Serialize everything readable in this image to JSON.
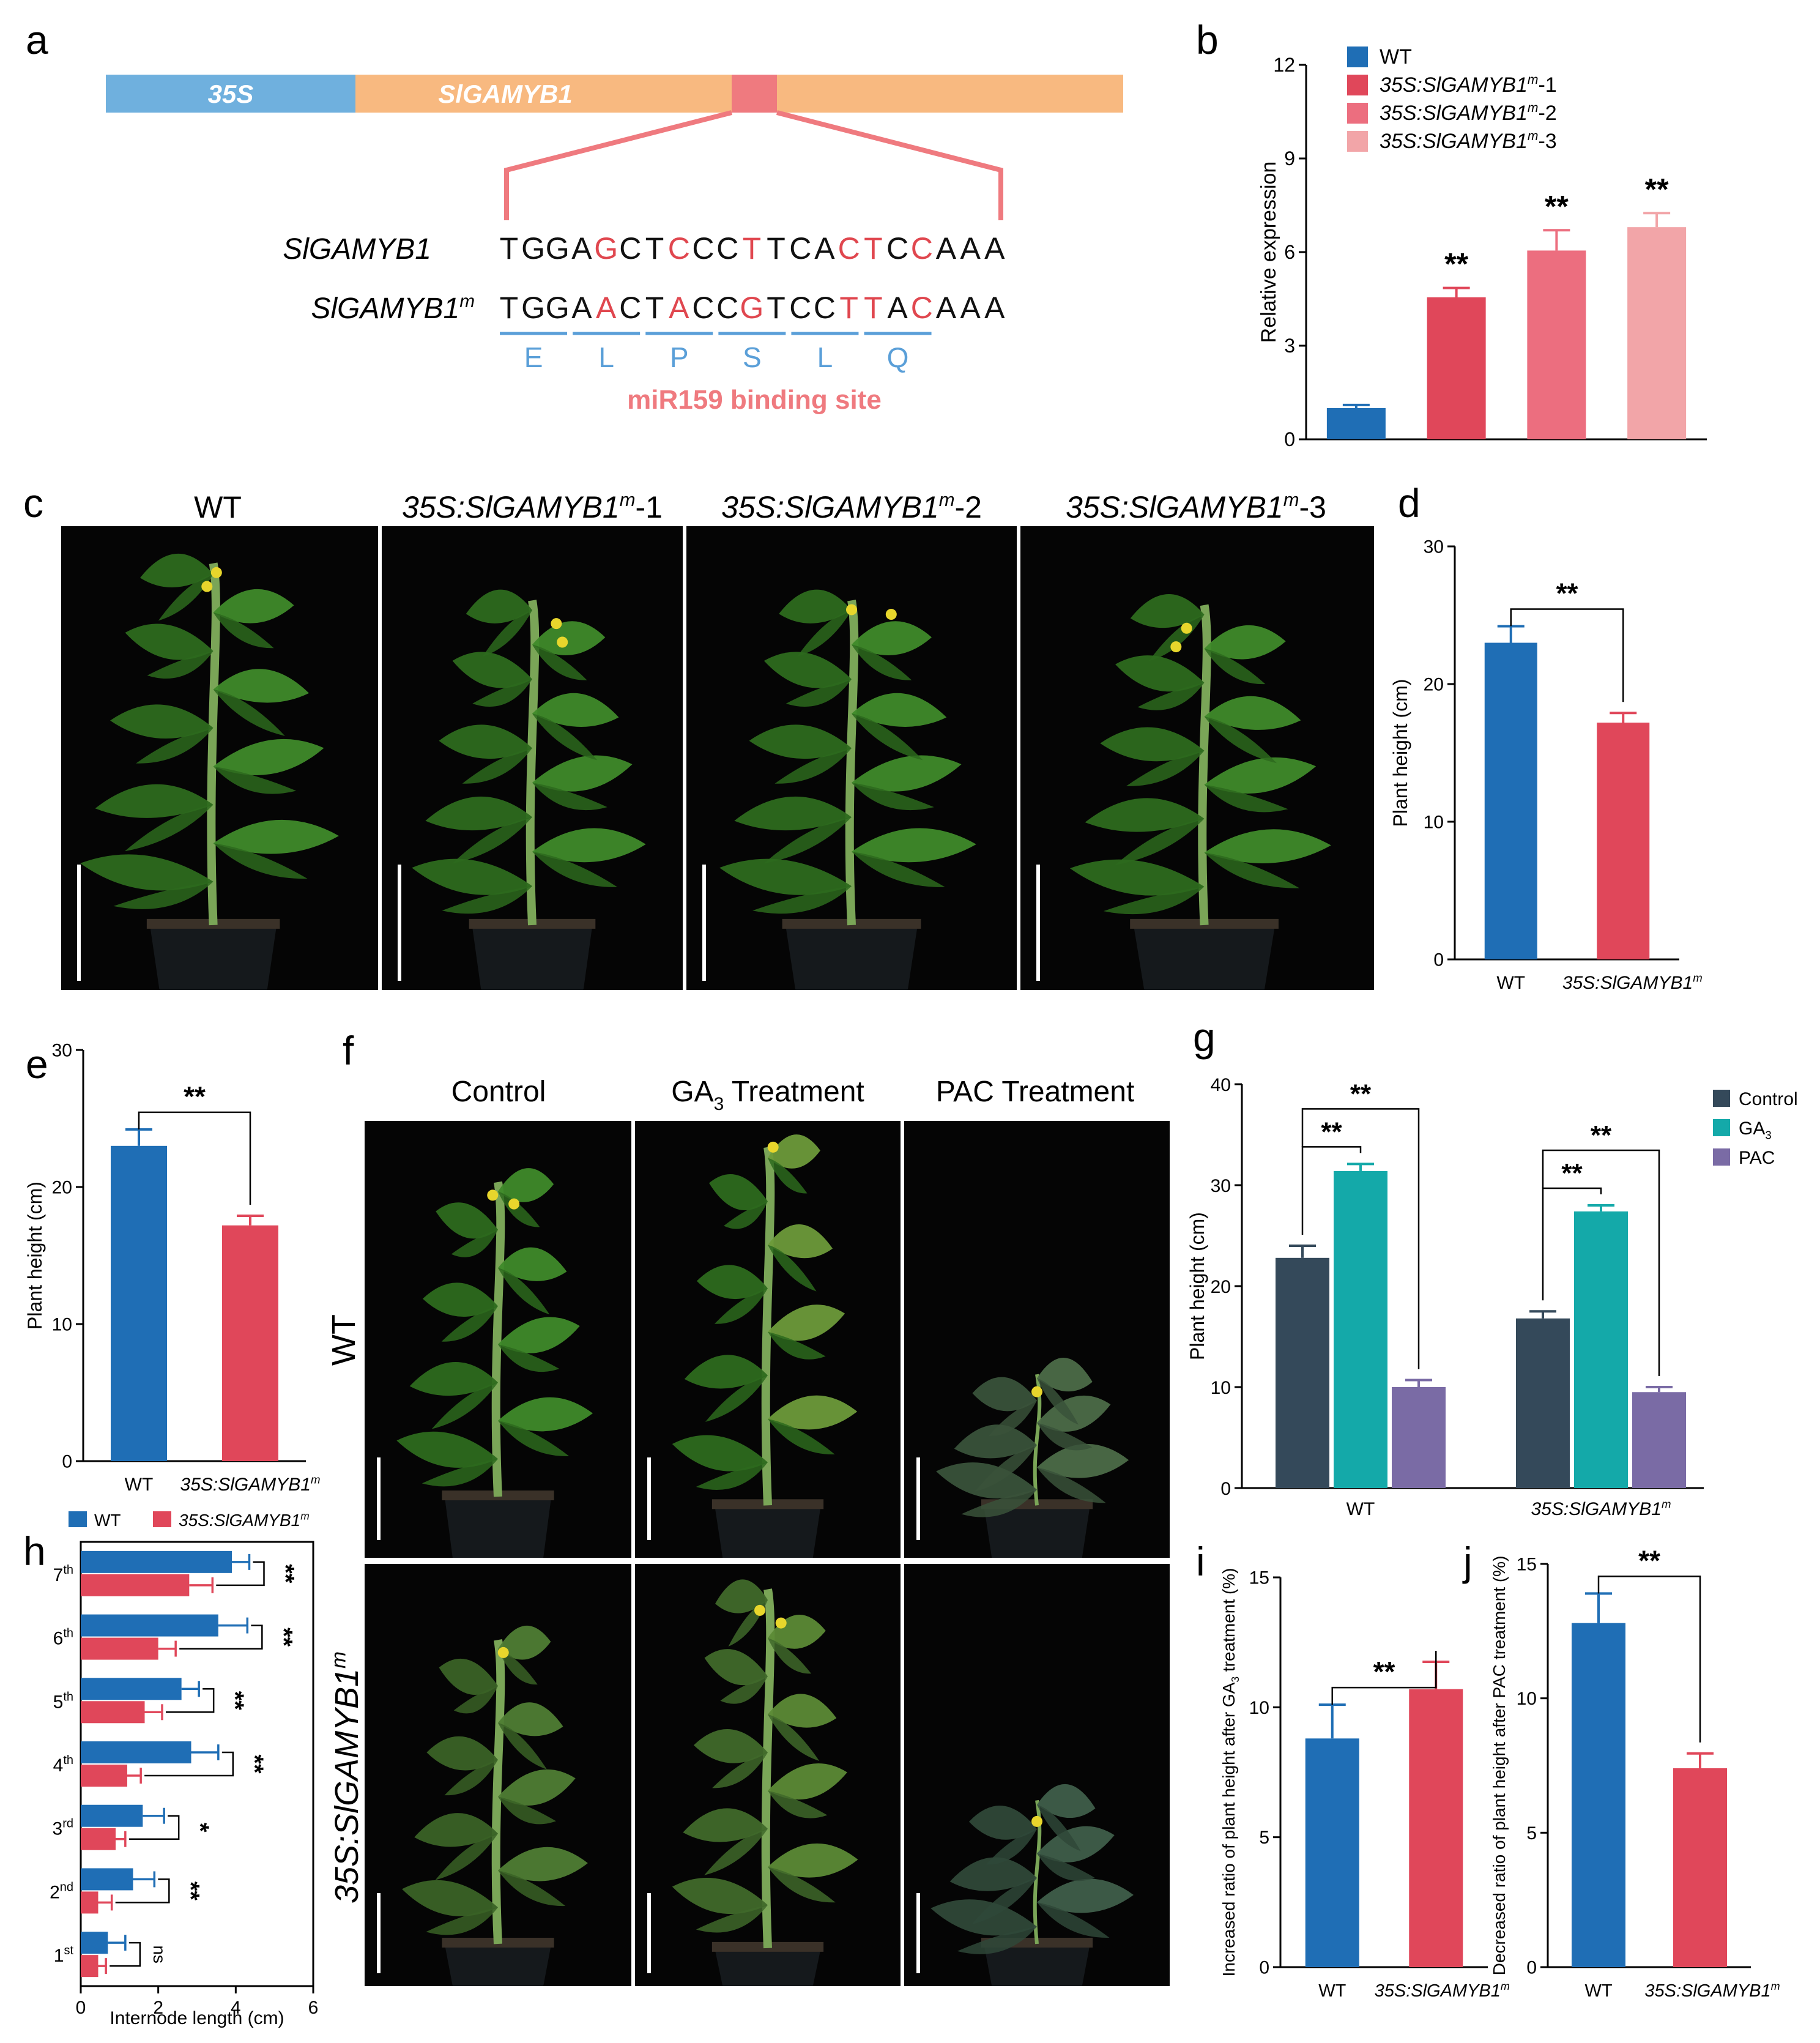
{
  "panel_letters": [
    "a",
    "b",
    "c",
    "d",
    "e",
    "f",
    "g",
    "h",
    "i",
    "j"
  ],
  "panel_a": {
    "promoter": "35S",
    "gene": "SlGAMYB1",
    "row1_label": "SlGAMYB1",
    "row2_label": "SlGAMYB1",
    "row2_sup": "m",
    "seq_wt": "TGGAGCTCCCTTCACTCCAAA",
    "seq_mut": "TGGAACTACCGTCCTTACAAA",
    "red_idx_wt": [
      4,
      7,
      10,
      14,
      15,
      17
    ],
    "red_idx_mut": [
      4,
      7,
      10,
      14,
      15,
      17
    ],
    "amino_acids": [
      "E",
      "L",
      "P",
      "S",
      "L",
      "Q"
    ],
    "site_label": "miR159 binding site",
    "colors": {
      "promoter": "#6fb0de",
      "gene": "#f8b980",
      "site": "#ef7a7f",
      "red": "#e0474f",
      "blue": "#5a9fd8"
    }
  },
  "panel_c": {
    "labels": [
      {
        "base": "WT",
        "sup": "",
        "suffix": ""
      },
      {
        "base": "35S:SlGAMYB1",
        "sup": "m",
        "suffix": "-1"
      },
      {
        "base": "35S:SlGAMYB1",
        "sup": "m",
        "suffix": "-2"
      },
      {
        "base": "35S:SlGAMYB1",
        "sup": "m",
        "suffix": "-3"
      }
    ]
  },
  "panel_g": {
    "col_labels": [
      "Control",
      "GA",
      "PAC Treatment"
    ],
    "ga_sub": "3",
    "ga_suffix": " Treatment",
    "row_labels": [
      {
        "base": "WT",
        "sup": ""
      },
      {
        "base": "35S:SlGAMYB1",
        "sup": "m"
      }
    ]
  },
  "chart_data": [
    {
      "id": "b",
      "type": "bar",
      "title": "",
      "ylabel": "Relative expression",
      "ylim": [
        0,
        12
      ],
      "yticks": [
        0,
        3,
        6,
        9,
        12
      ],
      "categories": [
        "WT",
        "35S:SlGAMYB1m-1",
        "35S:SlGAMYB1m-2",
        "35S:SlGAMYB1m-3"
      ],
      "values": [
        1.0,
        4.55,
        6.05,
        6.8
      ],
      "errors": [
        0.1,
        0.3,
        0.65,
        0.45
      ],
      "significance": [
        "",
        "**",
        "**",
        "**"
      ],
      "colors": [
        "#1f6eb5",
        "#e0475a",
        "#ec6e7f",
        "#f2a5a8"
      ],
      "legend": [
        {
          "base": "WT",
          "sup": "",
          "suffix": ""
        },
        {
          "base": "35S:SlGAMYB1",
          "sup": "m",
          "suffix": "-1"
        },
        {
          "base": "35S:SlGAMYB1",
          "sup": "m",
          "suffix": "-2"
        },
        {
          "base": "35S:SlGAMYB1",
          "sup": "m",
          "suffix": "-3"
        }
      ],
      "legend_position": "top-left"
    },
    {
      "id": "d",
      "type": "bar",
      "title": "",
      "ylabel": "Plant height (cm)",
      "ylim": [
        0,
        30
      ],
      "yticks": [
        0,
        10,
        20,
        30
      ],
      "categories": [
        "WT",
        "35S:SlGAMYB1m"
      ],
      "category_labels": [
        {
          "base": "WT",
          "sup": ""
        },
        {
          "base": "35S:SlGAMYB1",
          "sup": "m"
        }
      ],
      "values": [
        23.0,
        17.2
      ],
      "errors": [
        1.2,
        0.7
      ],
      "colors": [
        "#1f6eb5",
        "#e0475a"
      ],
      "significance": "**"
    },
    {
      "id": "e",
      "type": "bar",
      "title": "",
      "ylabel": "Plant height (cm)",
      "ylim": [
        0,
        30
      ],
      "yticks": [
        0,
        10,
        20,
        30
      ],
      "categories": [
        "WT",
        "35S:SlGAMYB1m"
      ],
      "category_labels": [
        {
          "base": "WT",
          "sup": ""
        },
        {
          "base": "35S:SlGAMYB1",
          "sup": "m"
        }
      ],
      "values": [
        23.0,
        17.2
      ],
      "errors": [
        1.2,
        0.7
      ],
      "colors": [
        "#1f6eb5",
        "#e0475a"
      ],
      "significance": "**"
    },
    {
      "id": "f",
      "type": "bar",
      "orientation": "horizontal",
      "title": "",
      "xlabel": "Internode length (cm)",
      "xlim": [
        0,
        6
      ],
      "xticks": [
        0,
        2,
        4,
        6
      ],
      "categories": [
        "1",
        "2",
        "3",
        "4",
        "5",
        "6",
        "7"
      ],
      "category_sup": [
        "st",
        "nd",
        "rd",
        "th",
        "th",
        "th",
        "th"
      ],
      "series": [
        {
          "name": "WT",
          "values": [
            0.7,
            1.35,
            1.6,
            2.85,
            2.6,
            3.55,
            3.9
          ],
          "errors": [
            0.45,
            0.55,
            0.55,
            0.7,
            0.45,
            0.75,
            0.45
          ],
          "color": "#1f6eb5"
        },
        {
          "name": "35S:SlGAMYB1m",
          "values": [
            0.45,
            0.45,
            0.9,
            1.2,
            1.65,
            2.0,
            2.8
          ],
          "errors": [
            0.2,
            0.35,
            0.25,
            0.35,
            0.45,
            0.45,
            0.6
          ],
          "color": "#e0475a"
        }
      ],
      "legend": [
        {
          "base": "WT",
          "sup": ""
        },
        {
          "base": "35S:SlGAMYB1",
          "sup": "m"
        }
      ],
      "legend_position": "top",
      "significance": [
        "ns",
        "**",
        "*",
        "**",
        "**",
        "**",
        "**"
      ]
    },
    {
      "id": "h",
      "type": "bar",
      "title": "",
      "ylabel": "Plant height (cm)",
      "ylim": [
        0,
        40
      ],
      "yticks": [
        0,
        10,
        20,
        30,
        40
      ],
      "categories": [
        "WT",
        "35S:SlGAMYB1m"
      ],
      "category_labels": [
        {
          "base": "WT",
          "sup": ""
        },
        {
          "base": "35S:SlGAMYB1",
          "sup": "m"
        }
      ],
      "series": [
        {
          "name": "Control",
          "values": [
            22.8,
            16.8
          ],
          "errors": [
            1.2,
            0.7
          ],
          "color": "#34495a"
        },
        {
          "name": "GA3",
          "values": [
            31.4,
            27.4
          ],
          "errors": [
            0.7,
            0.6
          ],
          "color": "#14a9a9"
        },
        {
          "name": "PAC",
          "values": [
            10.0,
            9.5
          ],
          "errors": [
            0.7,
            0.5
          ],
          "color": "#7a6ba5"
        }
      ],
      "legend": [
        {
          "base": "Control",
          "sub": ""
        },
        {
          "base": "GA",
          "sub": "3"
        },
        {
          "base": "PAC",
          "sub": ""
        }
      ],
      "legend_position": "top-right",
      "significance": "**"
    },
    {
      "id": "i",
      "type": "bar",
      "title": "",
      "ylabel": "Increased ratio of plant height  after GA treatment (%)",
      "ylabel_parts": [
        "Increased ratio of plant height  after GA",
        "3",
        " treatment (%)"
      ],
      "ylim": [
        0,
        15
      ],
      "yticks": [
        0,
        5,
        10,
        15
      ],
      "categories": [
        "WT",
        "35S:SlGAMYB1m"
      ],
      "category_labels": [
        {
          "base": "WT",
          "sup": ""
        },
        {
          "base": "35S:SlGAMYB1",
          "sup": "m"
        }
      ],
      "values": [
        8.8,
        10.7
      ],
      "errors": [
        1.3,
        1.05
      ],
      "colors": [
        "#1f6eb5",
        "#e0475a"
      ],
      "significance": "**"
    },
    {
      "id": "j",
      "type": "bar",
      "title": "",
      "ylabel": "Decreased ratio of plant height  after PAC treatment (%)",
      "ylim": [
        0,
        15
      ],
      "yticks": [
        0,
        5,
        10,
        15
      ],
      "categories": [
        "WT",
        "35S:SlGAMYB1m"
      ],
      "category_labels": [
        {
          "base": "WT",
          "sup": ""
        },
        {
          "base": "35S:SlGAMYB1",
          "sup": "m"
        }
      ],
      "values": [
        12.8,
        7.4
      ],
      "errors": [
        1.1,
        0.55
      ],
      "colors": [
        "#1f6eb5",
        "#e0475a"
      ],
      "significance": "**"
    }
  ]
}
